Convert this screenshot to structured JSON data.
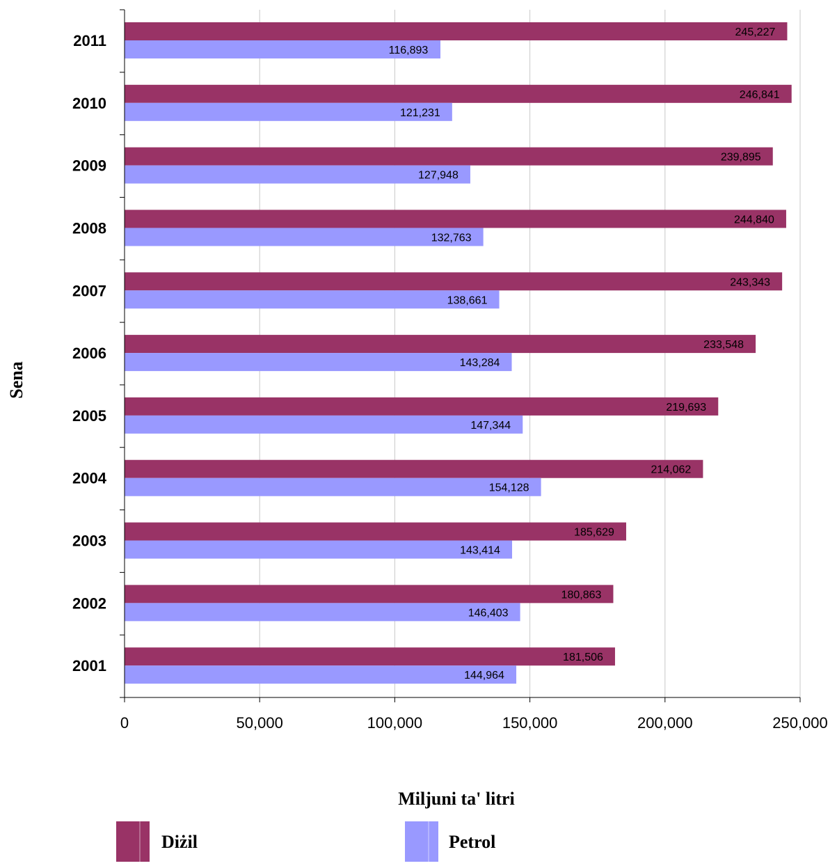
{
  "chart_data": {
    "type": "bar",
    "orientation": "horizontal",
    "categories": [
      "2001",
      "2002",
      "2003",
      "2004",
      "2005",
      "2006",
      "2007",
      "2008",
      "2009",
      "2010",
      "2011"
    ],
    "series": [
      {
        "name": "Diżil",
        "color": "#993366",
        "values": [
          181506,
          180863,
          185629,
          214062,
          219693,
          233548,
          243343,
          244840,
          239895,
          246841,
          245227
        ]
      },
      {
        "name": "Petrol",
        "color": "#9999FF",
        "values": [
          144964,
          146403,
          143414,
          154128,
          147344,
          143284,
          138661,
          132763,
          127948,
          121231,
          116893
        ]
      }
    ],
    "data_labels": {
      "Diżil": [
        "181,506",
        "180,863",
        "185,629",
        "214,062",
        "219,693",
        "233,548",
        "243,343",
        "244,840",
        "239,895",
        "246,841",
        "245,227"
      ],
      "Petrol": [
        "144,964",
        "146,403",
        "143,414",
        "154,128",
        "147,344",
        "143,284",
        "138,661",
        "132,763",
        "127,948",
        "121,231",
        "116,893"
      ]
    },
    "xlabel": "Miljuni ta' litri",
    "ylabel": "Sena",
    "xlim": [
      0,
      250000
    ],
    "xticks": [
      0,
      50000,
      100000,
      150000,
      200000,
      250000
    ],
    "xtick_labels": [
      "0",
      "50,000",
      "100,000",
      "150,000",
      "200,000",
      "250,000"
    ],
    "grid": "vertical",
    "legend_position": "bottom"
  }
}
